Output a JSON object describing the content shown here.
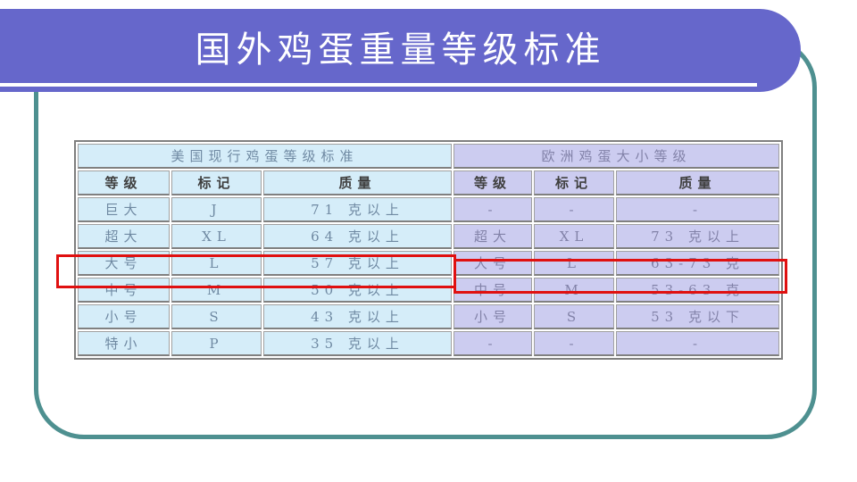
{
  "slide": {
    "title": "国外鸡蛋重量等级标准"
  },
  "colors": {
    "banner": "#6667CB",
    "frame_border": "#4E9090",
    "us_cell_bg": "#D5EDF9",
    "eu_cell_bg": "#CCCCF0",
    "us_text": "#6F89A2",
    "eu_text": "#8282A8",
    "header_text": "#3F3F3F",
    "table_outer_border": "#7F7F7F",
    "cell_border": "#A0A0A0",
    "cell_border_dark": "#808080",
    "highlight": "#E01010"
  },
  "table": {
    "us": {
      "caption": "美国现行鸡蛋等级标准",
      "headers": [
        "等级",
        "标记",
        "质量"
      ],
      "rows": [
        [
          "巨大",
          "J",
          "71 克以上"
        ],
        [
          "超大",
          "XL",
          "64 克以上"
        ],
        [
          "大号",
          "L",
          "57 克以上"
        ],
        [
          "中号",
          "M",
          "50 克以上"
        ],
        [
          "小号",
          "S",
          "43 克以上"
        ],
        [
          "特小",
          "P",
          "35 克以上"
        ]
      ],
      "highlight_row": 2
    },
    "eu": {
      "caption": "欧洲鸡蛋大小等级",
      "headers": [
        "等级",
        "标记",
        "质量"
      ],
      "rows": [
        [
          "-",
          "-",
          "-"
        ],
        [
          "超大",
          "XL",
          "73 克以上"
        ],
        [
          "大号",
          "L",
          "63-73 克"
        ],
        [
          "中号",
          "M",
          "53-63 克"
        ],
        [
          "小号",
          "S",
          "53 克以下"
        ],
        [
          "-",
          "-",
          "-"
        ]
      ],
      "highlight_row": 2
    }
  }
}
